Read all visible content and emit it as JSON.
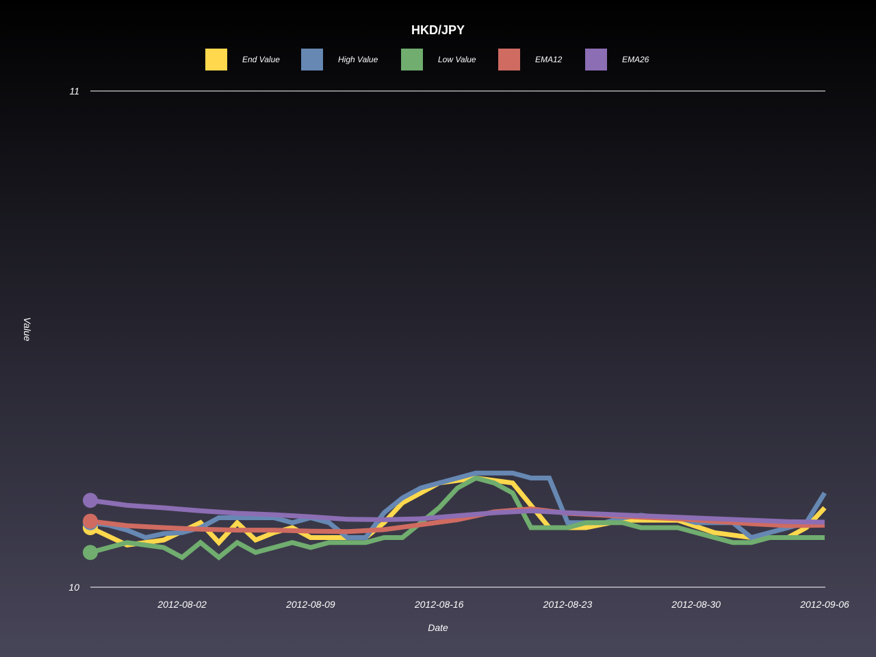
{
  "chart_data": {
    "type": "line",
    "title": "HKD/JPY",
    "xlabel": "Date",
    "ylabel": "Value",
    "ylim": [
      10,
      11
    ],
    "y_ticks": [
      "10",
      "11"
    ],
    "x_ticks": [
      "2012-08-02",
      "2012-08-09",
      "2012-08-16",
      "2012-08-23",
      "2012-08-30",
      "2012-09-06"
    ],
    "x_tick_values": [
      "2012-08-02",
      "2012-08-09",
      "2012-08-16",
      "2012-08-23",
      "2012-08-30",
      "2012-09-06"
    ],
    "xlim": [
      "2012-07-28",
      "2012-09-06"
    ],
    "legend_position": "top",
    "grid": false,
    "x": [
      "2012-07-28",
      "2012-07-29",
      "2012-07-30",
      "2012-07-31",
      "2012-08-01",
      "2012-08-02",
      "2012-08-03",
      "2012-08-04",
      "2012-08-05",
      "2012-08-06",
      "2012-08-07",
      "2012-08-08",
      "2012-08-09",
      "2012-08-10",
      "2012-08-11",
      "2012-08-12",
      "2012-08-13",
      "2012-08-14",
      "2012-08-15",
      "2012-08-16",
      "2012-08-17",
      "2012-08-18",
      "2012-08-19",
      "2012-08-20",
      "2012-08-21",
      "2012-08-22",
      "2012-08-23",
      "2012-08-24",
      "2012-08-25",
      "2012-08-26",
      "2012-08-27",
      "2012-08-28",
      "2012-08-29",
      "2012-08-30",
      "2012-08-31",
      "2012-09-01",
      "2012-09-02",
      "2012-09-03",
      "2012-09-04",
      "2012-09-05",
      "2012-09-06"
    ],
    "series": [
      {
        "name": "End Value",
        "color": "#ffd84d",
        "x": [
          "2012-07-28",
          "2012-07-30",
          "2012-08-01",
          "2012-08-03",
          "2012-08-04",
          "2012-08-05",
          "2012-08-06",
          "2012-08-07",
          "2012-08-08",
          "2012-08-09",
          "2012-08-11",
          "2012-08-12",
          "2012-08-13",
          "2012-08-14",
          "2012-08-16",
          "2012-08-18",
          "2012-08-20",
          "2012-08-22",
          "2012-08-24",
          "2012-08-26",
          "2012-08-27",
          "2012-08-29",
          "2012-08-31",
          "2012-09-02",
          "2012-09-04",
          "2012-09-05",
          "2012-09-06"
        ],
        "values": [
          10.12,
          10.085,
          10.095,
          10.13,
          10.09,
          10.13,
          10.095,
          10.11,
          10.12,
          10.1,
          10.1,
          10.1,
          10.13,
          10.17,
          10.21,
          10.22,
          10.21,
          10.12,
          10.12,
          10.135,
          10.135,
          10.135,
          10.11,
          10.1,
          10.1,
          10.12,
          10.16
        ]
      },
      {
        "name": "High Value",
        "color": "#6688b3",
        "x": [
          "2012-07-28",
          "2012-07-29",
          "2012-07-30",
          "2012-07-31",
          "2012-08-01",
          "2012-08-02",
          "2012-08-03",
          "2012-08-04",
          "2012-08-05",
          "2012-08-06",
          "2012-08-07",
          "2012-08-08",
          "2012-08-09",
          "2012-08-10",
          "2012-08-11",
          "2012-08-12",
          "2012-08-13",
          "2012-08-14",
          "2012-08-15",
          "2012-08-16",
          "2012-08-17",
          "2012-08-18",
          "2012-08-19",
          "2012-08-20",
          "2012-08-21",
          "2012-08-22",
          "2012-08-23",
          "2012-08-24",
          "2012-08-25",
          "2012-08-26",
          "2012-08-27",
          "2012-08-28",
          "2012-08-29",
          "2012-08-30",
          "2012-08-31",
          "2012-09-01",
          "2012-09-02",
          "2012-09-03",
          "2012-09-04",
          "2012-09-05",
          "2012-09-06"
        ],
        "values": [
          10.13,
          10.125,
          10.115,
          10.1,
          10.108,
          10.11,
          10.12,
          10.14,
          10.14,
          10.14,
          10.14,
          10.13,
          10.14,
          10.13,
          10.1,
          10.1,
          10.15,
          10.18,
          10.2,
          10.21,
          10.22,
          10.23,
          10.23,
          10.23,
          10.22,
          10.22,
          10.13,
          10.13,
          10.13,
          10.14,
          10.145,
          10.14,
          10.14,
          10.13,
          10.13,
          10.13,
          10.1,
          10.11,
          10.12,
          10.13,
          10.19
        ]
      },
      {
        "name": "Low Value",
        "color": "#70ad6f",
        "x": [
          "2012-07-28",
          "2012-07-30",
          "2012-08-01",
          "2012-08-02",
          "2012-08-03",
          "2012-08-04",
          "2012-08-05",
          "2012-08-06",
          "2012-08-07",
          "2012-08-08",
          "2012-08-09",
          "2012-08-10",
          "2012-08-11",
          "2012-08-12",
          "2012-08-13",
          "2012-08-14",
          "2012-08-15",
          "2012-08-16",
          "2012-08-17",
          "2012-08-18",
          "2012-08-19",
          "2012-08-20",
          "2012-08-21",
          "2012-08-22",
          "2012-08-23",
          "2012-08-24",
          "2012-08-25",
          "2012-08-26",
          "2012-08-27",
          "2012-08-28",
          "2012-08-29",
          "2012-08-30",
          "2012-08-31",
          "2012-09-01",
          "2012-09-02",
          "2012-09-03",
          "2012-09-04",
          "2012-09-05",
          "2012-09-06"
        ],
        "values": [
          10.07,
          10.09,
          10.08,
          10.06,
          10.09,
          10.06,
          10.09,
          10.07,
          10.08,
          10.09,
          10.08,
          10.09,
          10.09,
          10.09,
          10.1,
          10.1,
          10.13,
          10.16,
          10.2,
          10.22,
          10.21,
          10.19,
          10.12,
          10.12,
          10.12,
          10.13,
          10.13,
          10.13,
          10.12,
          10.12,
          10.12,
          10.11,
          10.1,
          10.09,
          10.09,
          10.1,
          10.1,
          10.1,
          10.1
        ]
      },
      {
        "name": "EMA12",
        "color": "#cf6b61",
        "x": [
          "2012-07-28",
          "2012-07-30",
          "2012-08-01",
          "2012-08-03",
          "2012-08-05",
          "2012-08-07",
          "2012-08-09",
          "2012-08-11",
          "2012-08-13",
          "2012-08-15",
          "2012-08-17",
          "2012-08-19",
          "2012-08-21",
          "2012-08-23",
          "2012-08-25",
          "2012-08-27",
          "2012-08-29",
          "2012-08-31",
          "2012-09-02",
          "2012-09-04",
          "2012-09-06"
        ],
        "values": [
          10.133,
          10.124,
          10.12,
          10.117,
          10.115,
          10.115,
          10.113,
          10.112,
          10.116,
          10.126,
          10.136,
          10.152,
          10.158,
          10.149,
          10.145,
          10.141,
          10.138,
          10.133,
          10.128,
          10.124,
          10.125
        ]
      },
      {
        "name": "EMA26",
        "color": "#8c6eb4",
        "x": [
          "2012-07-28",
          "2012-07-30",
          "2012-08-01",
          "2012-08-03",
          "2012-08-05",
          "2012-08-07",
          "2012-08-09",
          "2012-08-11",
          "2012-08-13",
          "2012-08-15",
          "2012-08-17",
          "2012-08-19",
          "2012-08-21",
          "2012-08-23",
          "2012-08-25",
          "2012-08-27",
          "2012-08-29",
          "2012-08-31",
          "2012-09-02",
          "2012-09-04",
          "2012-09-06"
        ],
        "values": [
          10.175,
          10.165,
          10.16,
          10.154,
          10.149,
          10.146,
          10.142,
          10.137,
          10.136,
          10.138,
          10.144,
          10.15,
          10.154,
          10.15,
          10.147,
          10.144,
          10.141,
          10.138,
          10.135,
          10.132,
          10.131
        ]
      }
    ]
  }
}
